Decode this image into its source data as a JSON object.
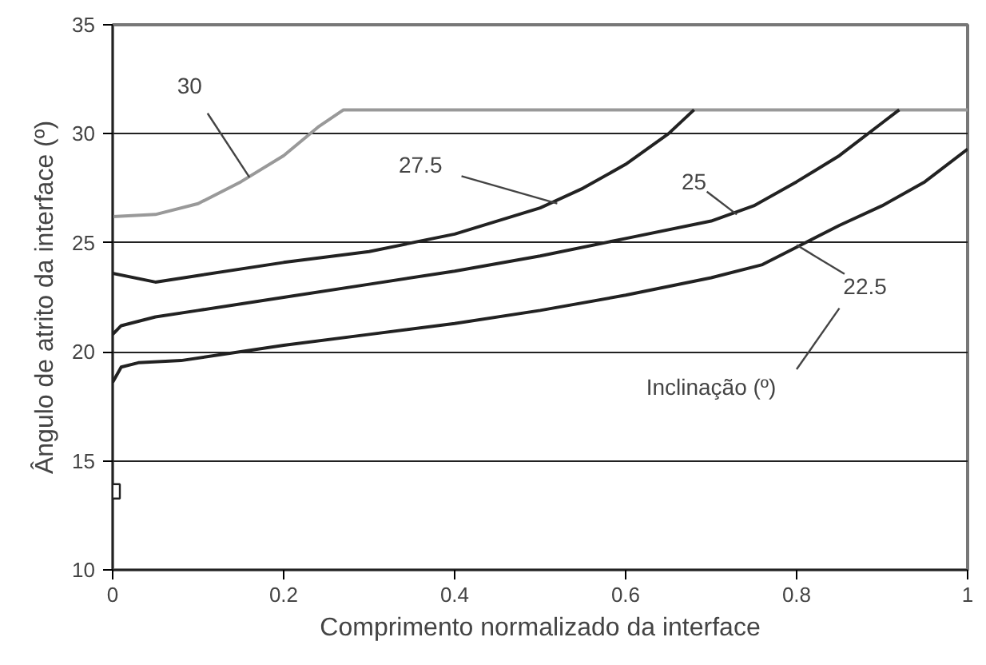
{
  "chart_data": {
    "type": "line",
    "xlabel": "Comprimento normalizado da interface",
    "ylabel": "Ângulo de atrito da interface (º)",
    "xlim": [
      0,
      1
    ],
    "ylim": [
      10,
      35
    ],
    "xticks": [
      0,
      0.2,
      0.4,
      0.6,
      0.8,
      1
    ],
    "yticks": [
      10,
      15,
      20,
      25,
      30,
      35
    ],
    "grid": "y",
    "marker": "none",
    "line_style": "solid",
    "series": [
      {
        "color": "#999999",
        "x": [
          0,
          0.05,
          0.1,
          0.15,
          0.2,
          0.24,
          0.27,
          1
        ],
        "values": [
          26.2,
          26.3,
          26.8,
          27.8,
          29.0,
          30.3,
          31.1,
          31.1
        ]
      },
      {
        "color": "#222222",
        "x": [
          0,
          0.05,
          0.1,
          0.2,
          0.3,
          0.4,
          0.5,
          0.55,
          0.6,
          0.65,
          0.68
        ],
        "values": [
          23.6,
          23.2,
          23.5,
          24.1,
          24.6,
          25.4,
          26.6,
          27.5,
          28.6,
          30.0,
          31.1
        ]
      },
      {
        "color": "#222222",
        "x": [
          0,
          0.01,
          0.05,
          0.1,
          0.2,
          0.3,
          0.4,
          0.5,
          0.6,
          0.7,
          0.75,
          0.8,
          0.85,
          0.9,
          0.92
        ],
        "values": [
          20.8,
          21.2,
          21.6,
          21.9,
          22.5,
          23.1,
          23.7,
          24.4,
          25.2,
          26.0,
          26.7,
          27.8,
          29.0,
          30.5,
          31.1
        ]
      },
      {
        "color": "#222222",
        "x": [
          0,
          0.01,
          0.03,
          0.08,
          0.2,
          0.3,
          0.4,
          0.5,
          0.6,
          0.7,
          0.76,
          0.8,
          0.85,
          0.9,
          0.95,
          1.0
        ],
        "values": [
          18.6,
          19.3,
          19.5,
          19.6,
          20.3,
          20.8,
          21.3,
          21.9,
          22.6,
          23.4,
          24.0,
          24.8,
          25.8,
          26.7,
          27.8,
          29.3
        ]
      },
      {
        "type": "scatter",
        "marker": "square",
        "color": "#222222",
        "x": [
          0
        ],
        "values": [
          13.6
        ]
      }
    ],
    "annotations": [
      {
        "text": "30",
        "x": 0.16,
        "y": 28.0
      },
      {
        "text": "27.5",
        "x": 0.52,
        "y": 26.8
      },
      {
        "text": "25",
        "x": 0.73,
        "y": 26.3
      },
      {
        "text": "22.5",
        "x": 0.8,
        "y": 24.9
      },
      "Inclinação (º)"
    ]
  }
}
